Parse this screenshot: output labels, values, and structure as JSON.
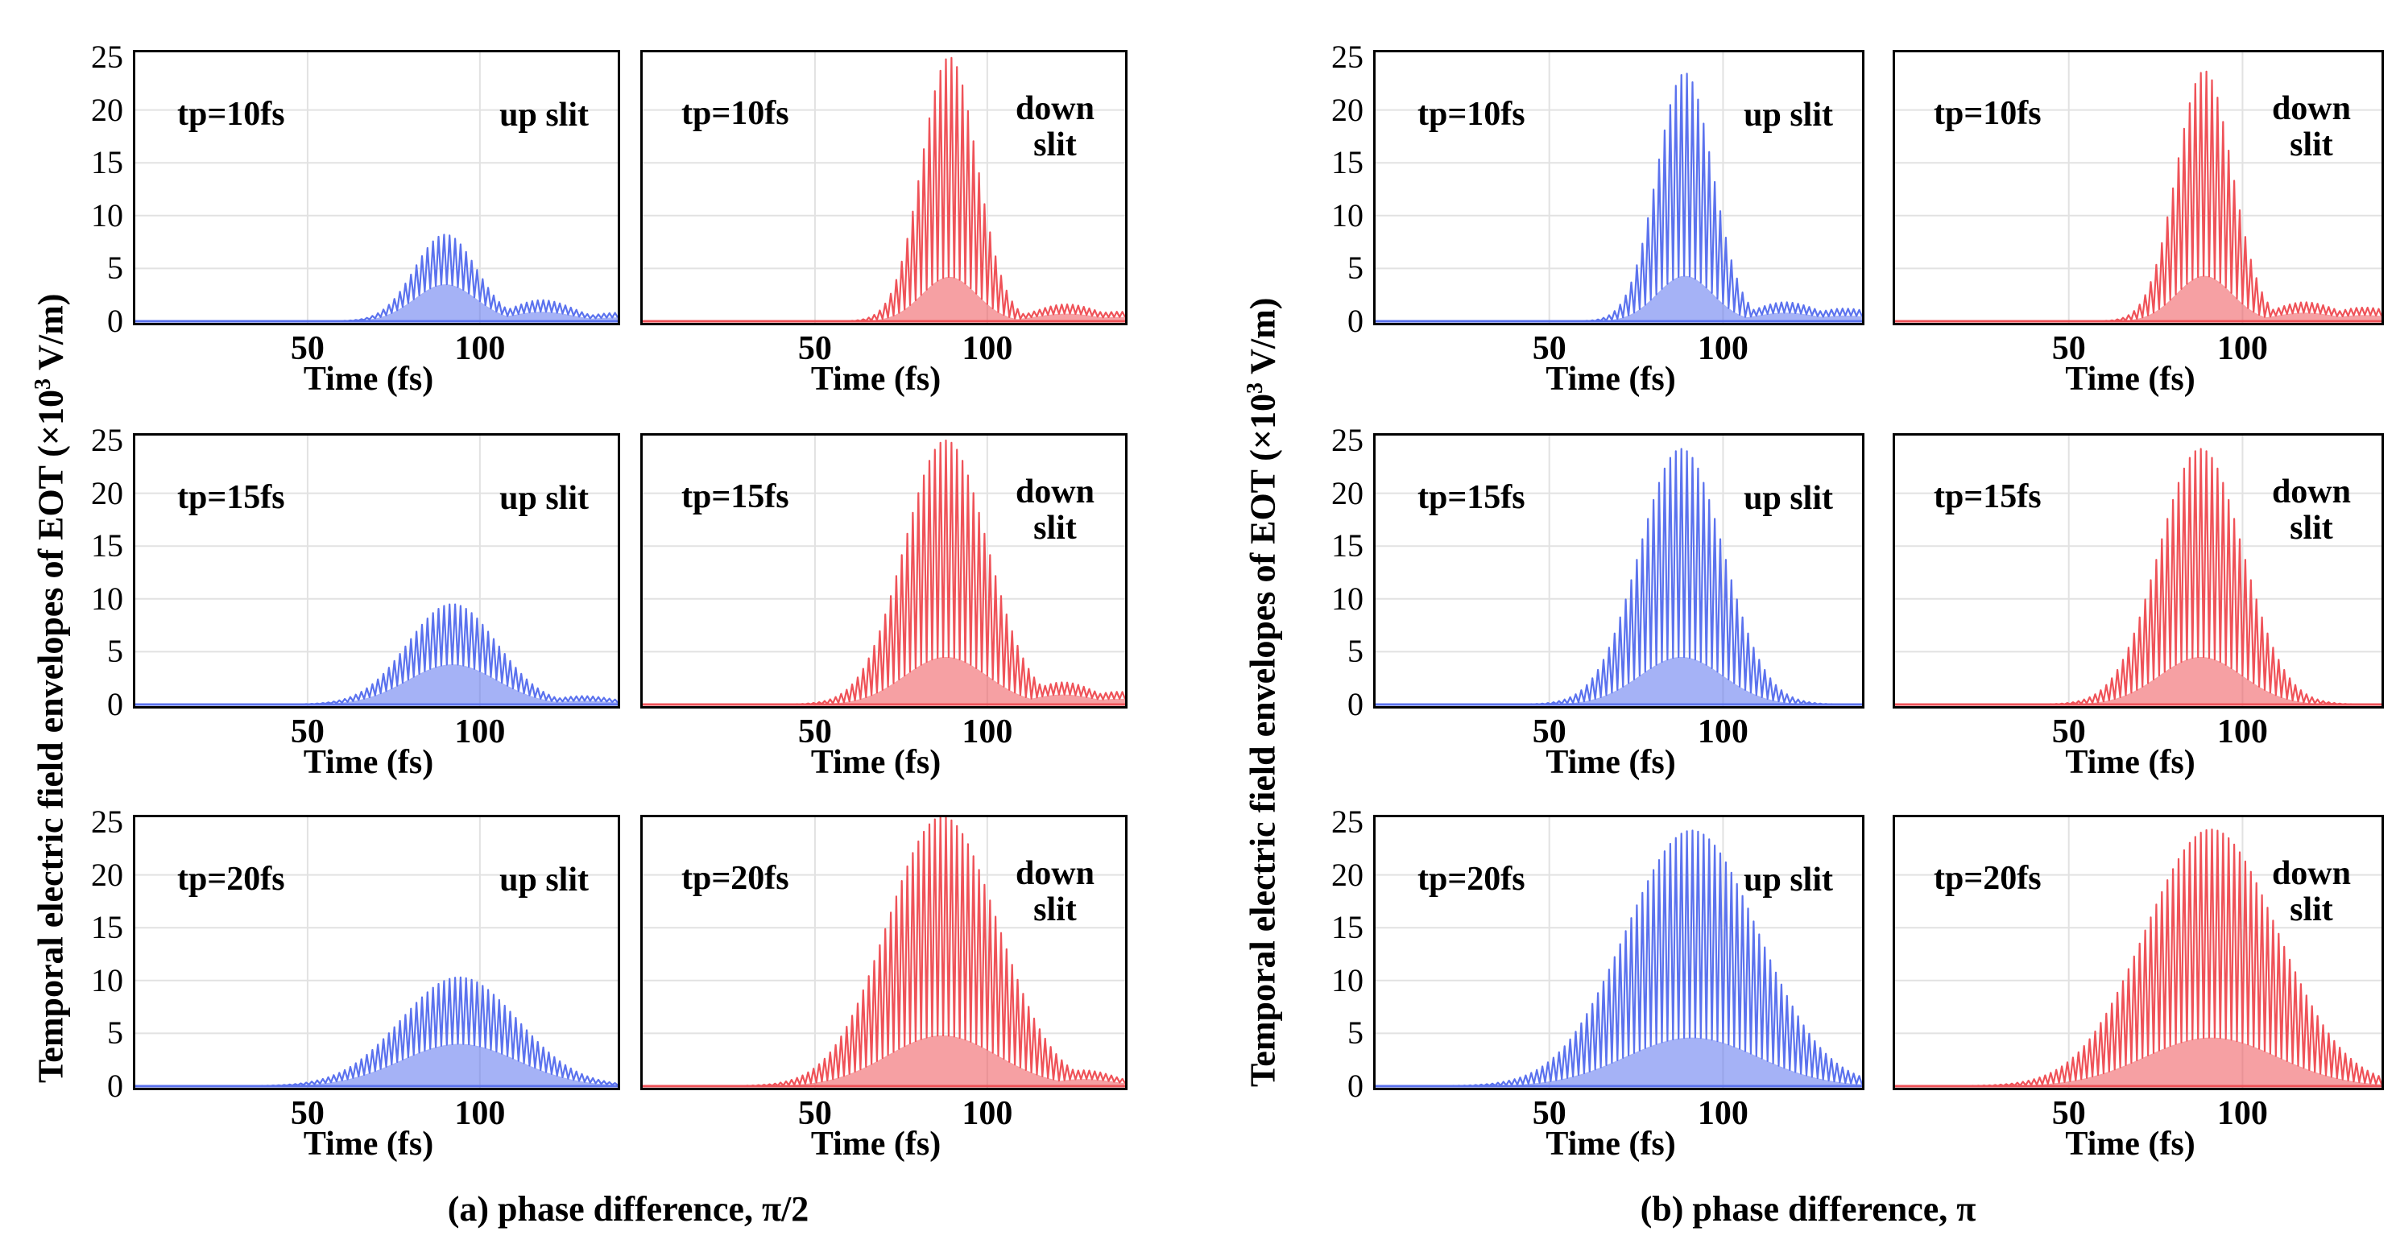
{
  "figure": {
    "ylabel_main": "Temporal electric field envelopes of EOT (×10",
    "ylabel_exp": "3",
    "ylabel_tail": " V/m)",
    "xlabel": "Time (fs)",
    "x_ticks": [
      "50",
      "100"
    ],
    "y_ticks": [
      "25",
      "20",
      "15",
      "10",
      "5",
      "0"
    ],
    "captions": [
      "(a) phase difference, π/2",
      "(b) phase difference, π"
    ]
  },
  "colors": {
    "up": "#5b72ee",
    "down": "#ef5258",
    "axis": "#000000",
    "grid": "#e2e2e2"
  },
  "chart_data": [
    {
      "type": "area",
      "group": "a",
      "row": 0,
      "col": 0,
      "tp_label": "tp=10fs",
      "slit_label": "up slit",
      "series": "up",
      "xlim": [
        0,
        140
      ],
      "ylim": [
        0,
        25
      ],
      "peak_time": 90,
      "peak_upper": 8.2,
      "peak_lower": 3.5,
      "width": 9,
      "tail": [
        {
          "x": 118,
          "y": 2.0
        },
        {
          "x": 140,
          "y": 0.8
        }
      ]
    },
    {
      "type": "area",
      "group": "a",
      "row": 0,
      "col": 1,
      "tp_label": "tp=10fs",
      "slit_label": "down\nslit",
      "series": "down",
      "xlim": [
        0,
        140
      ],
      "ylim": [
        0,
        25
      ],
      "peak_time": 89,
      "peak_upper": 25,
      "peak_lower": 4.2,
      "width": 8,
      "tail": [
        {
          "x": 123,
          "y": 1.6
        },
        {
          "x": 138,
          "y": 0.9
        }
      ]
    },
    {
      "type": "area",
      "group": "a",
      "row": 1,
      "col": 0,
      "tp_label": "tp=15fs",
      "slit_label": "up slit",
      "series": "up",
      "xlim": [
        0,
        140
      ],
      "ylim": [
        0,
        25
      ],
      "peak_time": 92,
      "peak_upper": 9.5,
      "peak_lower": 3.8,
      "width": 13,
      "tail": [
        {
          "x": 130,
          "y": 0.8
        }
      ]
    },
    {
      "type": "area",
      "group": "a",
      "row": 1,
      "col": 1,
      "tp_label": "tp=15fs",
      "slit_label": "down\nslit",
      "series": "down",
      "xlim": [
        0,
        140
      ],
      "ylim": [
        0,
        25
      ],
      "peak_time": 88,
      "peak_upper": 25,
      "peak_lower": 4.5,
      "width": 12,
      "tail": [
        {
          "x": 122,
          "y": 2.1
        },
        {
          "x": 138,
          "y": 1.2
        }
      ]
    },
    {
      "type": "area",
      "group": "a",
      "row": 2,
      "col": 0,
      "tp_label": "tp=20fs",
      "slit_label": "up slit",
      "series": "up",
      "xlim": [
        0,
        140
      ],
      "ylim": [
        0,
        25
      ],
      "peak_time": 94,
      "peak_upper": 10.3,
      "peak_lower": 4.0,
      "width": 17,
      "tail": []
    },
    {
      "type": "area",
      "group": "a",
      "row": 2,
      "col": 1,
      "tp_label": "tp=20fs",
      "slit_label": "down\nslit",
      "series": "down",
      "xlim": [
        0,
        140
      ],
      "ylim": [
        0,
        25
      ],
      "peak_time": 87,
      "peak_upper": 25.5,
      "peak_lower": 4.8,
      "width": 16,
      "tail": [
        {
          "x": 128,
          "y": 1.5
        }
      ]
    },
    {
      "type": "area",
      "group": "b",
      "row": 0,
      "col": 0,
      "tp_label": "tp=10fs",
      "slit_label": "up slit",
      "series": "up",
      "xlim": [
        0,
        140
      ],
      "ylim": [
        0,
        25
      ],
      "peak_time": 89,
      "peak_upper": 23.5,
      "peak_lower": 4.3,
      "width": 8,
      "tail": [
        {
          "x": 118,
          "y": 1.8
        },
        {
          "x": 135,
          "y": 1.2
        }
      ]
    },
    {
      "type": "area",
      "group": "b",
      "row": 0,
      "col": 1,
      "tp_label": "tp=10fs",
      "slit_label": "down\nslit",
      "series": "down",
      "xlim": [
        0,
        140
      ],
      "ylim": [
        0,
        25
      ],
      "peak_time": 89,
      "peak_upper": 23.7,
      "peak_lower": 4.3,
      "width": 8,
      "tail": [
        {
          "x": 118,
          "y": 1.8
        },
        {
          "x": 135,
          "y": 1.3
        }
      ]
    },
    {
      "type": "area",
      "group": "b",
      "row": 1,
      "col": 0,
      "tp_label": "tp=15fs",
      "slit_label": "up slit",
      "series": "up",
      "xlim": [
        0,
        140
      ],
      "ylim": [
        0,
        25
      ],
      "peak_time": 88,
      "peak_upper": 24.2,
      "peak_lower": 4.5,
      "width": 12,
      "tail": []
    },
    {
      "type": "area",
      "group": "b",
      "row": 1,
      "col": 1,
      "tp_label": "tp=15fs",
      "slit_label": "down\nslit",
      "series": "down",
      "xlim": [
        0,
        140
      ],
      "ylim": [
        0,
        25
      ],
      "peak_time": 88,
      "peak_upper": 24.2,
      "peak_lower": 4.5,
      "width": 12,
      "tail": []
    },
    {
      "type": "area",
      "group": "b",
      "row": 2,
      "col": 0,
      "tp_label": "tp=20fs",
      "slit_label": "up slit",
      "series": "up",
      "xlim": [
        0,
        140
      ],
      "ylim": [
        0,
        25
      ],
      "peak_time": 91,
      "peak_upper": 24.2,
      "peak_lower": 4.6,
      "width": 19,
      "tail": []
    },
    {
      "type": "area",
      "group": "b",
      "row": 2,
      "col": 1,
      "tp_label": "tp=20fs",
      "slit_label": "down\nslit",
      "series": "down",
      "xlim": [
        0,
        140
      ],
      "ylim": [
        0,
        25
      ],
      "peak_time": 91,
      "peak_upper": 24.3,
      "peak_lower": 4.6,
      "width": 19,
      "tail": []
    }
  ]
}
